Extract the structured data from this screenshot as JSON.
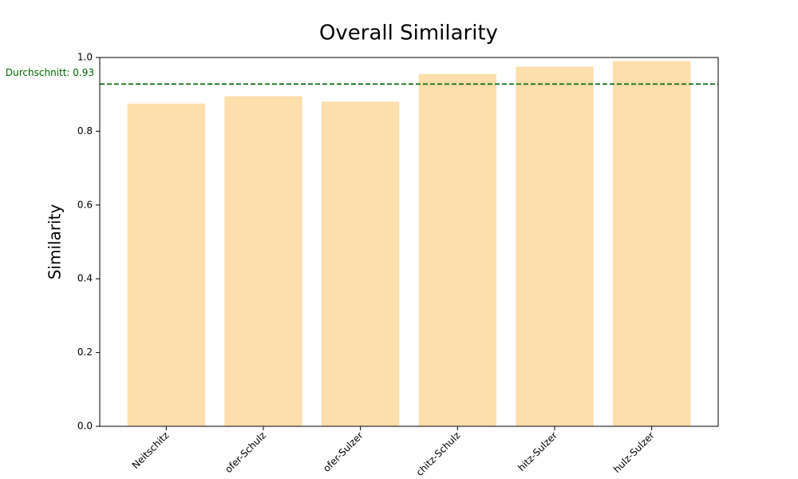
{
  "chart_data": {
    "type": "bar",
    "title": "Overall Similarity",
    "y_label": "Similarity",
    "categories": [
      "Neitschitz",
      "ofer-Schulz",
      "ofer-Sulzer",
      "chitz-Schulz",
      "hitz-Sulzer",
      "hulz-Sulzer"
    ],
    "values": [
      0.875,
      0.895,
      0.88,
      0.955,
      0.975,
      0.99
    ],
    "color": "#ffdead",
    "ylim": [
      0,
      1
    ],
    "yticks": [
      {
        "value": 0,
        "label": "0.0"
      },
      0.2,
      0.4,
      0.6,
      0.8,
      {
        "value": 1,
        "label": "1.0"
      }
    ],
    "grid": false,
    "mean_line": {
      "value": 0.928,
      "label": "Durchschnitt: 0.93",
      "color": "#006400"
    }
  }
}
